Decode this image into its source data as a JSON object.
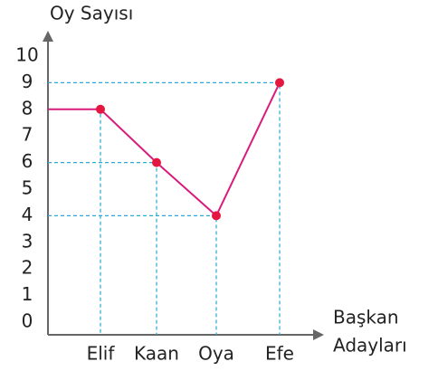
{
  "chart_data": {
    "type": "line",
    "y_label": "Oy Sayısı",
    "x_label": [
      "Başkan",
      "Adayları"
    ],
    "categories": [
      "Elif",
      "Kaan",
      "Oya",
      "Efe"
    ],
    "values": [
      8,
      6,
      4,
      9
    ],
    "color": "#d81b7d",
    "marker_color": "#e3173f",
    "guide_color": "#2aa9d6",
    "ylim": [
      0,
      10
    ],
    "yticks": [
      0,
      1,
      2,
      3,
      4,
      5,
      6,
      7,
      8,
      9,
      10
    ]
  }
}
